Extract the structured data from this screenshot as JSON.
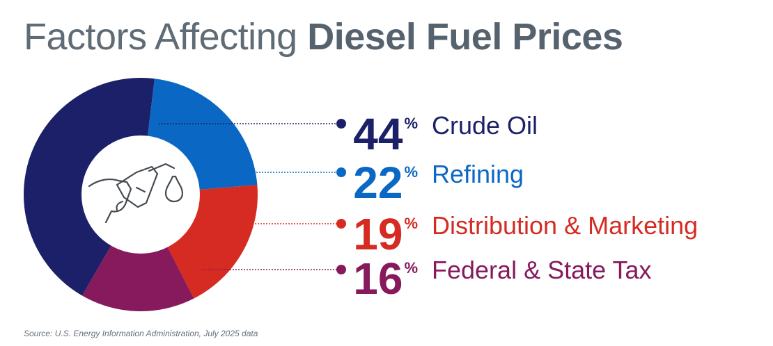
{
  "title": {
    "light": "Factors Affecting",
    "bold": "Diesel Fuel Prices"
  },
  "chart_data": {
    "type": "pie",
    "title": "Factors Affecting Diesel Fuel Prices",
    "slices": [
      {
        "label": "Crude Oil",
        "value": 44,
        "unit": "%",
        "color": "#1c2068"
      },
      {
        "label": "Refining",
        "value": 22,
        "unit": "%",
        "color": "#0a68c4"
      },
      {
        "label": "Distribution & Marketing",
        "value": 19,
        "unit": "%",
        "color": "#d52b22"
      },
      {
        "label": "Federal & State Tax",
        "value": 16,
        "unit": "%",
        "color": "#861a5c"
      }
    ],
    "center_icon": "fuel-nozzle-icon"
  },
  "source": "Source: U.S. Energy Information Administration, July 2025 data"
}
